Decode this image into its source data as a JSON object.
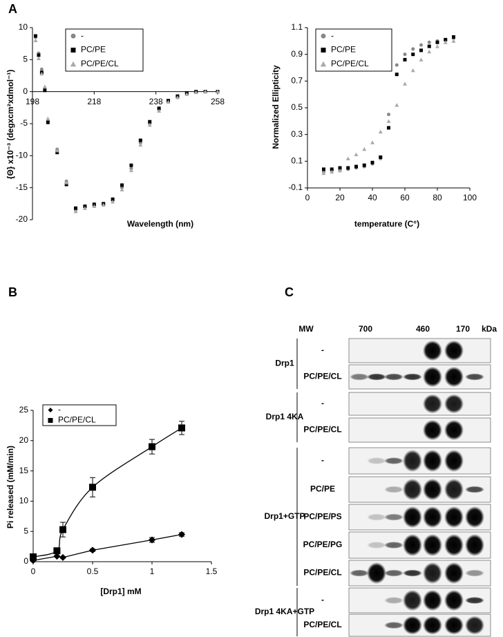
{
  "panels": [
    "A",
    "B",
    "C"
  ],
  "chart_data": [
    {
      "type": "scatter",
      "x_label": "Wavelength (nm)",
      "y_label": "{Θ} x10⁻³ (degxcm²xdmol⁻¹)",
      "x": [
        199,
        200,
        201,
        202,
        203,
        206,
        209,
        212,
        215,
        218,
        221,
        224,
        227,
        230,
        233,
        236,
        239,
        242,
        245,
        248,
        251,
        254,
        258
      ],
      "series": [
        {
          "name": "-",
          "color": "#888888",
          "marker": "circle",
          "values": [
            8.5,
            6,
            3.5,
            0.5,
            -4.5,
            -9,
            -14,
            -18.5,
            -18,
            -17.8,
            -17.6,
            -17,
            -15,
            -12,
            -8,
            -5,
            -2.8,
            -1.5,
            -0.8,
            -0.3,
            0,
            0,
            0
          ]
        },
        {
          "name": "PC/PE",
          "color": "#000000",
          "marker": "square",
          "values": [
            8.7,
            5.7,
            3,
            0.2,
            -4.8,
            -9.5,
            -14.5,
            -18.2,
            -17.9,
            -17.6,
            -17.5,
            -16.8,
            -14.6,
            -11.5,
            -7.6,
            -4.7,
            -2.6,
            -1.4,
            -0.7,
            -0.2,
            0,
            0,
            0
          ]
        },
        {
          "name": "PC/PE/CL",
          "color": "#aaaaaa",
          "marker": "triangle",
          "values": [
            8,
            5.2,
            2.8,
            0.8,
            -4.2,
            -9.2,
            -14.2,
            -18.7,
            -18.2,
            -17.9,
            -17.7,
            -17.2,
            -15.3,
            -12.3,
            -8.3,
            -5.2,
            -3,
            -1.6,
            -0.9,
            -0.4,
            -0.1,
            0,
            0
          ]
        }
      ],
      "xlim": [
        198,
        258
      ],
      "ylim": [
        -20,
        10
      ],
      "xticks": [
        198,
        218,
        238,
        258
      ],
      "yticks": [
        -20,
        -15,
        -10,
        -5,
        0,
        5,
        10
      ],
      "legend": "upper left"
    },
    {
      "type": "scatter",
      "x_label": "temperature (C°)",
      "y_label": "Normalized Ellipticity",
      "x": [
        10,
        15,
        20,
        25,
        30,
        35,
        40,
        45,
        50,
        55,
        60,
        65,
        70,
        75,
        80,
        85,
        90
      ],
      "series": [
        {
          "name": "-",
          "color": "#888888",
          "marker": "circle",
          "values": [
            0.02,
            0.03,
            0.03,
            0.04,
            0.05,
            0.06,
            0.08,
            0.12,
            0.45,
            0.82,
            0.9,
            0.94,
            0.97,
            0.99,
            1.0,
            1.01,
            1.02
          ]
        },
        {
          "name": "PC/PE",
          "color": "#000000",
          "marker": "square",
          "values": [
            0.04,
            0.04,
            0.05,
            0.05,
            0.06,
            0.07,
            0.09,
            0.13,
            0.35,
            0.75,
            0.86,
            0.9,
            0.93,
            0.96,
            0.99,
            1.01,
            1.03
          ]
        },
        {
          "name": "PC/PE/CL",
          "color": "#aaaaaa",
          "marker": "triangle",
          "values": [
            0.01,
            0.02,
            0.03,
            0.12,
            0.15,
            0.19,
            0.24,
            0.32,
            0.4,
            0.52,
            0.68,
            0.78,
            0.86,
            0.92,
            0.96,
            0.99,
            1.0
          ]
        }
      ],
      "xlim": [
        0,
        100
      ],
      "ylim": [
        -0.1,
        1.1
      ],
      "xticks": [
        0,
        20,
        40,
        60,
        80,
        100
      ],
      "yticks": [
        -0.1,
        0.1,
        0.3,
        0.5,
        0.7,
        0.9,
        1.1
      ],
      "legend": "upper left"
    },
    {
      "type": "scatter",
      "x_label": "[Drp1] mM",
      "y_label": "Pi released (mM/min)",
      "x": [
        0,
        0.2,
        0.25,
        0.5,
        1,
        1.25
      ],
      "series": [
        {
          "name": "-",
          "color": "#000000",
          "marker": "diamond",
          "line": "straight",
          "values": [
            0.2,
            0.9,
            0.7,
            1.9,
            3.6,
            4.5
          ],
          "errors": [
            0.1,
            0.1,
            0.1,
            0.2,
            0.4,
            0.3
          ]
        },
        {
          "name": "PC/PE/CL",
          "color": "#000000",
          "marker": "square",
          "line": "smooth",
          "values": [
            0.8,
            1.8,
            5.3,
            12.3,
            19,
            22.1
          ],
          "errors": [
            0.3,
            0.3,
            1.2,
            1.6,
            1.2,
            1.1
          ]
        }
      ],
      "xlim": [
        0,
        1.5
      ],
      "ylim": [
        0,
        25
      ],
      "xticks": [
        0,
        0.5,
        1,
        1.5
      ],
      "yticks": [
        0,
        5,
        10,
        15,
        20,
        25
      ],
      "legend": "upper left"
    }
  ],
  "blot": {
    "header": [
      "MW",
      "700",
      "460",
      "170",
      "kDa"
    ],
    "groups": [
      {
        "label": "Drp1",
        "lanes": [
          "-",
          "PC/PE/CL"
        ]
      },
      {
        "label": "Drp1 4KA",
        "lanes": [
          "-",
          "PC/PE/CL"
        ]
      },
      {
        "label": "Drp1+GTP",
        "lanes": [
          "-",
          "PC/PE",
          "PC/PE/PS",
          "PC/PE/PG",
          "PC/PE/CL"
        ]
      },
      {
        "label": "Drp1 4KA+GTP",
        "lanes": [
          "-",
          "PC/PE/CL"
        ]
      }
    ]
  }
}
